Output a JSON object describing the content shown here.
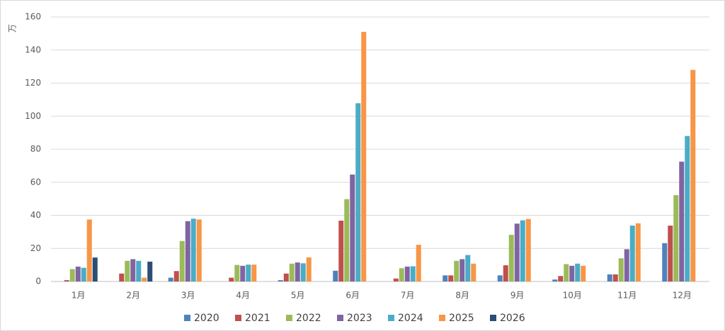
{
  "chart_data": {
    "type": "bar",
    "y_label": "万",
    "categories": [
      "1月",
      "2月",
      "3月",
      "4月",
      "5月",
      "6月",
      "7月",
      "8月",
      "9月",
      "10月",
      "11月",
      "12月"
    ],
    "series": [
      {
        "name": "2020",
        "color": "#4f81bd",
        "values": [
          0,
          0,
          2.3,
          0,
          0.8,
          6.5,
          0,
          3.7,
          3.7,
          1.2,
          4.3,
          23.2
        ]
      },
      {
        "name": "2021",
        "color": "#c0504d",
        "values": [
          0.8,
          4.8,
          6.3,
          2.3,
          4.8,
          36.8,
          1.8,
          3.7,
          9.8,
          3.3,
          4.3,
          33.8
        ]
      },
      {
        "name": "2022",
        "color": "#9bbb59",
        "values": [
          7.5,
          12.5,
          24.5,
          10,
          10.8,
          49.8,
          8,
          12.5,
          28.2,
          10.5,
          14,
          52.2
        ]
      },
      {
        "name": "2023",
        "color": "#8064a2",
        "values": [
          9,
          13.5,
          36.5,
          9.5,
          11.5,
          64.7,
          9,
          13.5,
          35,
          9.5,
          19.5,
          72.5
        ]
      },
      {
        "name": "2024",
        "color": "#4bacc6",
        "values": [
          8.3,
          12.5,
          38,
          10.2,
          11,
          107.8,
          9.2,
          16,
          37,
          10.8,
          33.8,
          88
        ]
      },
      {
        "name": "2025",
        "color": "#f79646",
        "values": [
          37.5,
          2.3,
          37.5,
          10.2,
          14.6,
          151,
          22.2,
          10.8,
          37.8,
          9.5,
          35.2,
          128
        ]
      },
      {
        "name": "2026",
        "color": "#2c4d75",
        "values": [
          14.5,
          12,
          null,
          null,
          null,
          null,
          null,
          null,
          null,
          null,
          null,
          null
        ]
      }
    ],
    "ylim": [
      0,
      160
    ],
    "yticks": [
      0,
      20,
      40,
      60,
      80,
      100,
      120,
      140,
      160
    ],
    "grid": true
  }
}
